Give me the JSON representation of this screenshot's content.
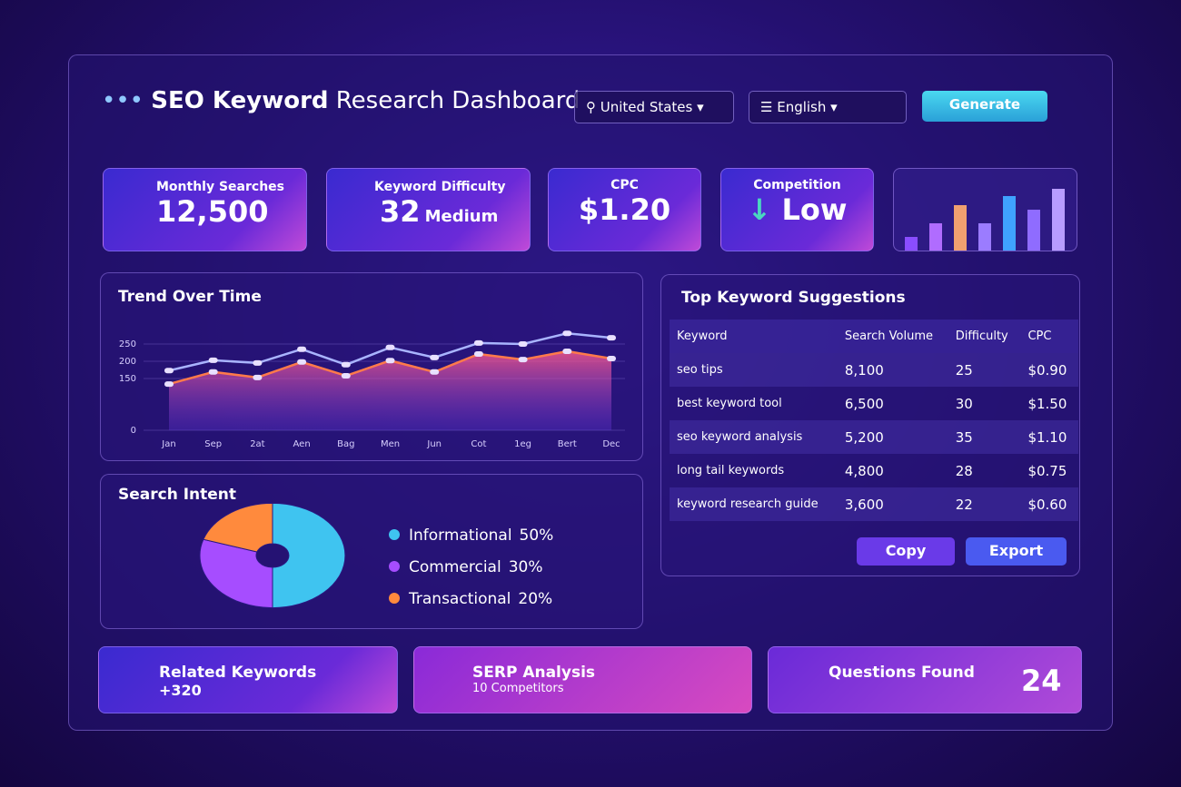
{
  "header": {
    "title_bold": "SEO Keyword",
    "title_rest": "Research Dashboard",
    "country": "United States",
    "language": "English",
    "button": "Generate"
  },
  "metrics": [
    {
      "label": "Monthly Searches",
      "value": "12,500"
    },
    {
      "label": "Keyword Difficulty",
      "value": "32",
      "note": "Medium"
    },
    {
      "label": "CPC",
      "value": "$1.20"
    },
    {
      "label": "Competition",
      "value": "Low"
    }
  ],
  "mini_bars": {
    "type": "bar",
    "values": [
      15,
      30,
      50,
      30,
      60,
      45,
      68
    ],
    "colors": [
      "#8a4dff",
      "#b06cff",
      "#f0a070",
      "#9b7cff",
      "#3fa2ff",
      "#8f6cff",
      "#b79cff"
    ]
  },
  "trend": {
    "type": "line",
    "title": "Trend Over Time",
    "categories": [
      "Jan",
      "Sep",
      "2at",
      "Aen",
      "Bag",
      "Men",
      "Jun",
      "Cot",
      "1eg",
      "Bert",
      "Dec"
    ],
    "series": [
      {
        "color": "#a9b4ff",
        "values": [
          173,
          203,
          195,
          235,
          190,
          240,
          211,
          253,
          250,
          281,
          268
        ]
      },
      {
        "color": "#ff7a4a",
        "values": [
          134,
          169,
          153,
          198,
          158,
          202,
          169,
          221,
          205,
          229,
          208
        ]
      }
    ],
    "ylim": [
      0,
      300
    ],
    "yticks": [
      0,
      150,
      200,
      250
    ],
    "grid": true
  },
  "intent": {
    "type": "pie",
    "title": "Search Intent",
    "categories": [
      "Informational",
      "Commercial",
      "Transactional"
    ],
    "values": [
      50,
      30,
      20
    ],
    "value_labels": [
      "50%",
      "30%",
      "20%"
    ],
    "colors": [
      "#3fc4f0",
      "#a64dff",
      "#ff8a3d"
    ]
  },
  "table": {
    "title": "Top Keyword Suggestions",
    "columns": [
      "Keyword",
      "Search Volume",
      "Difficulty",
      "CPC"
    ],
    "rows": [
      [
        "seo tips",
        "8,100",
        "25",
        "$0.90"
      ],
      [
        "best keyword tool",
        "6,500",
        "30",
        "$1.50"
      ],
      [
        "seo keyword analysis",
        "5,200",
        "35",
        "$1.10"
      ],
      [
        "long tail keywords",
        "4,800",
        "28",
        "$0.75"
      ],
      [
        "keyword research guide",
        "3,600",
        "22",
        "$0.60"
      ]
    ],
    "buttons": [
      "Copy",
      "Export"
    ]
  },
  "cards": [
    {
      "title": "Related Keywords",
      "detail": "+320"
    },
    {
      "title": "SERP Analysis",
      "detail": "10 Competitors"
    },
    {
      "title": "Questions Found",
      "detail": "24"
    }
  ]
}
